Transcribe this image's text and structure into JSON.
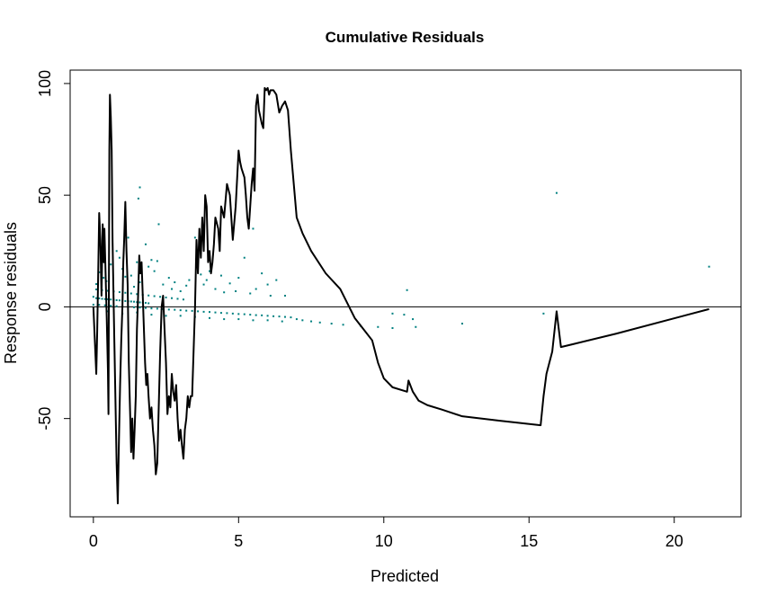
{
  "chart_data": {
    "type": "scatter",
    "title": "Cumulative Residuals",
    "xlabel": "Predicted",
    "ylabel": "Response   residuals",
    "xlim": [
      -0.8,
      22.3
    ],
    "ylim": [
      -94,
      106
    ],
    "x_ticks": [
      0,
      5,
      10,
      15,
      20
    ],
    "y_ticks": [
      -50,
      0,
      50,
      100
    ],
    "reference_line": {
      "y": 0,
      "color": "#000000"
    },
    "colors": {
      "points": "#008080",
      "cumulative_line": "#000000"
    },
    "grid": false,
    "legend": "none",
    "series": [
      {
        "kind": "points",
        "points": [
          [
            0.0,
            4.5
          ],
          [
            0.1,
            3.9
          ],
          [
            0.2,
            3.8
          ],
          [
            0.3,
            3.6
          ],
          [
            0.4,
            3.5
          ],
          [
            0.5,
            3.4
          ],
          [
            0.6,
            3.3
          ],
          [
            0.7,
            3.1
          ],
          [
            0.8,
            3.0
          ],
          [
            0.9,
            2.9
          ],
          [
            1.0,
            2.8
          ],
          [
            1.1,
            2.6
          ],
          [
            1.2,
            2.5
          ],
          [
            1.3,
            2.4
          ],
          [
            1.4,
            2.3
          ],
          [
            1.5,
            2.1
          ],
          [
            1.6,
            2.0
          ],
          [
            1.7,
            1.9
          ],
          [
            1.8,
            1.8
          ],
          [
            1.9,
            1.6
          ],
          [
            0.0,
            1.0
          ],
          [
            0.2,
            0.9
          ],
          [
            0.4,
            0.7
          ],
          [
            0.6,
            0.5
          ],
          [
            0.8,
            0.3
          ],
          [
            1.0,
            0.2
          ],
          [
            1.2,
            0.0
          ],
          [
            1.4,
            -0.2
          ],
          [
            1.6,
            -0.3
          ],
          [
            1.8,
            -0.5
          ],
          [
            2.0,
            -0.7
          ],
          [
            2.2,
            -0.8
          ],
          [
            2.4,
            -1.0
          ],
          [
            2.6,
            -1.2
          ],
          [
            2.8,
            -1.3
          ],
          [
            3.0,
            -1.5
          ],
          [
            3.2,
            -1.7
          ],
          [
            3.4,
            -1.8
          ],
          [
            3.6,
            -2.0
          ],
          [
            3.8,
            -2.2
          ],
          [
            4.0,
            -2.3
          ],
          [
            4.2,
            -2.5
          ],
          [
            4.4,
            -2.7
          ],
          [
            4.6,
            -2.8
          ],
          [
            4.8,
            -3.0
          ],
          [
            5.0,
            -3.2
          ],
          [
            5.2,
            -3.3
          ],
          [
            5.4,
            -3.5
          ],
          [
            5.6,
            -3.7
          ],
          [
            5.8,
            -3.8
          ],
          [
            6.0,
            -4.0
          ],
          [
            6.2,
            -4.2
          ],
          [
            6.4,
            -4.3
          ],
          [
            6.6,
            -4.5
          ],
          [
            6.8,
            -4.7
          ],
          [
            7.0,
            -5.5
          ],
          [
            7.2,
            -6.0
          ],
          [
            7.5,
            -6.5
          ],
          [
            7.8,
            -7.0
          ],
          [
            8.2,
            -7.5
          ],
          [
            8.6,
            -8.0
          ],
          [
            9.2,
            -8.5
          ],
          [
            9.8,
            -9.0
          ],
          [
            10.3,
            -9.5
          ],
          [
            11.1,
            -9.0
          ],
          [
            0.1,
            7.8
          ],
          [
            0.3,
            7.5
          ],
          [
            0.5,
            7.2
          ],
          [
            0.7,
            6.9
          ],
          [
            0.9,
            6.6
          ],
          [
            1.1,
            6.3
          ],
          [
            1.3,
            6.0
          ],
          [
            1.5,
            5.7
          ],
          [
            1.7,
            5.4
          ],
          [
            1.9,
            5.1
          ],
          [
            2.1,
            4.8
          ],
          [
            2.3,
            4.5
          ],
          [
            2.5,
            4.2
          ],
          [
            2.7,
            3.9
          ],
          [
            2.9,
            3.6
          ],
          [
            3.1,
            3.3
          ],
          [
            0.1,
            10.2
          ],
          [
            0.2,
            15.5
          ],
          [
            0.3,
            20.0
          ],
          [
            0.35,
            13.0
          ],
          [
            0.45,
            11.5
          ],
          [
            0.6,
            19.0
          ],
          [
            0.8,
            25.0
          ],
          [
            0.9,
            22.0
          ],
          [
            1.0,
            17.0
          ],
          [
            1.1,
            13.5
          ],
          [
            1.2,
            31.0
          ],
          [
            1.3,
            14.0
          ],
          [
            1.4,
            9.0
          ],
          [
            1.5,
            20.0
          ],
          [
            1.6,
            11.0
          ],
          [
            1.55,
            48.5
          ],
          [
            1.6,
            53.5
          ],
          [
            1.8,
            28.0
          ],
          [
            1.9,
            18.0
          ],
          [
            2.0,
            21.0
          ],
          [
            2.1,
            16.0
          ],
          [
            2.2,
            20.5
          ],
          [
            2.25,
            37.0
          ],
          [
            2.4,
            10.0
          ],
          [
            2.6,
            13.0
          ],
          [
            2.7,
            8.0
          ],
          [
            2.8,
            11.0
          ],
          [
            3.0,
            7.0
          ],
          [
            3.2,
            9.5
          ],
          [
            3.3,
            12.0
          ],
          [
            3.5,
            31.0
          ],
          [
            3.6,
            24.0
          ],
          [
            3.7,
            14.5
          ],
          [
            3.8,
            10.0
          ],
          [
            3.9,
            12.0
          ],
          [
            4.0,
            16.0
          ],
          [
            4.2,
            8.0
          ],
          [
            4.4,
            14.0
          ],
          [
            4.5,
            6.5
          ],
          [
            4.7,
            10.5
          ],
          [
            4.9,
            7.0
          ],
          [
            5.0,
            13.0
          ],
          [
            5.2,
            22.0
          ],
          [
            5.4,
            6.0
          ],
          [
            5.5,
            35.0
          ],
          [
            5.6,
            8.0
          ],
          [
            5.8,
            15.0
          ],
          [
            6.0,
            10.0
          ],
          [
            6.1,
            5.0
          ],
          [
            6.3,
            12.0
          ],
          [
            6.6,
            5.0
          ],
          [
            0.5,
            -2.0
          ],
          [
            1.0,
            -3.0
          ],
          [
            1.5,
            -2.5
          ],
          [
            2.0,
            -3.5
          ],
          [
            2.5,
            -4.0
          ],
          [
            3.0,
            -4.0
          ],
          [
            3.5,
            -4.5
          ],
          [
            4.0,
            -5.0
          ],
          [
            4.5,
            -5.5
          ],
          [
            5.0,
            -5.5
          ],
          [
            5.5,
            -6.0
          ],
          [
            6.0,
            -6.0
          ],
          [
            6.5,
            -6.5
          ],
          [
            10.3,
            -3.0
          ],
          [
            10.7,
            -3.5
          ],
          [
            10.8,
            7.5
          ],
          [
            11.0,
            -5.5
          ],
          [
            12.7,
            -7.5
          ],
          [
            15.5,
            -3.0
          ],
          [
            15.95,
            51.0
          ],
          [
            21.2,
            18.0
          ]
        ]
      },
      {
        "kind": "line",
        "name": "cumulative residuals",
        "points": [
          [
            0.0,
            0
          ],
          [
            0.05,
            -15
          ],
          [
            0.1,
            -30
          ],
          [
            0.13,
            -12
          ],
          [
            0.16,
            10
          ],
          [
            0.2,
            42
          ],
          [
            0.24,
            30
          ],
          [
            0.28,
            5
          ],
          [
            0.32,
            37
          ],
          [
            0.36,
            20
          ],
          [
            0.38,
            35
          ],
          [
            0.42,
            15
          ],
          [
            0.46,
            -5
          ],
          [
            0.5,
            -28
          ],
          [
            0.52,
            -48
          ],
          [
            0.55,
            70
          ],
          [
            0.57,
            95
          ],
          [
            0.6,
            85
          ],
          [
            0.63,
            70
          ],
          [
            0.66,
            30
          ],
          [
            0.7,
            0
          ],
          [
            0.75,
            -35
          ],
          [
            0.8,
            -70
          ],
          [
            0.84,
            -88
          ],
          [
            0.88,
            -60
          ],
          [
            0.92,
            -35
          ],
          [
            0.96,
            -15
          ],
          [
            1.0,
            0
          ],
          [
            1.03,
            20
          ],
          [
            1.06,
            30
          ],
          [
            1.1,
            47
          ],
          [
            1.14,
            25
          ],
          [
            1.18,
            10
          ],
          [
            1.22,
            -25
          ],
          [
            1.26,
            -45
          ],
          [
            1.3,
            -65
          ],
          [
            1.34,
            -50
          ],
          [
            1.38,
            -68
          ],
          [
            1.42,
            -55
          ],
          [
            1.46,
            -40
          ],
          [
            1.5,
            -10
          ],
          [
            1.54,
            5
          ],
          [
            1.58,
            23
          ],
          [
            1.62,
            15
          ],
          [
            1.66,
            20
          ],
          [
            1.7,
            5
          ],
          [
            1.74,
            -10
          ],
          [
            1.78,
            -25
          ],
          [
            1.82,
            -35
          ],
          [
            1.86,
            -30
          ],
          [
            1.9,
            -40
          ],
          [
            1.95,
            -50
          ],
          [
            2.0,
            -45
          ],
          [
            2.05,
            -55
          ],
          [
            2.1,
            -62
          ],
          [
            2.15,
            -75
          ],
          [
            2.2,
            -70
          ],
          [
            2.25,
            -45
          ],
          [
            2.3,
            -20
          ],
          [
            2.35,
            0
          ],
          [
            2.4,
            5
          ],
          [
            2.45,
            -10
          ],
          [
            2.5,
            -25
          ],
          [
            2.55,
            -48
          ],
          [
            2.6,
            -40
          ],
          [
            2.65,
            -45
          ],
          [
            2.7,
            -30
          ],
          [
            2.75,
            -38
          ],
          [
            2.8,
            -42
          ],
          [
            2.85,
            -35
          ],
          [
            2.9,
            -50
          ],
          [
            2.95,
            -60
          ],
          [
            3.0,
            -55
          ],
          [
            3.05,
            -62
          ],
          [
            3.1,
            -68
          ],
          [
            3.15,
            -55
          ],
          [
            3.2,
            -50
          ],
          [
            3.25,
            -40
          ],
          [
            3.3,
            -45
          ],
          [
            3.35,
            -40
          ],
          [
            3.4,
            -40
          ],
          [
            3.45,
            -20
          ],
          [
            3.5,
            0
          ],
          [
            3.55,
            30
          ],
          [
            3.6,
            15
          ],
          [
            3.65,
            35
          ],
          [
            3.7,
            22
          ],
          [
            3.75,
            40
          ],
          [
            3.8,
            25
          ],
          [
            3.85,
            50
          ],
          [
            3.9,
            45
          ],
          [
            3.95,
            20
          ],
          [
            4.0,
            25
          ],
          [
            4.05,
            15
          ],
          [
            4.1,
            20
          ],
          [
            4.15,
            28
          ],
          [
            4.2,
            40
          ],
          [
            4.3,
            35
          ],
          [
            4.35,
            25
          ],
          [
            4.4,
            45
          ],
          [
            4.5,
            40
          ],
          [
            4.6,
            55
          ],
          [
            4.7,
            50
          ],
          [
            4.75,
            40
          ],
          [
            4.8,
            30
          ],
          [
            4.9,
            45
          ],
          [
            5.0,
            70
          ],
          [
            5.05,
            65
          ],
          [
            5.1,
            62
          ],
          [
            5.2,
            58
          ],
          [
            5.25,
            50
          ],
          [
            5.3,
            40
          ],
          [
            5.35,
            35
          ],
          [
            5.4,
            45
          ],
          [
            5.45,
            55
          ],
          [
            5.5,
            62
          ],
          [
            5.55,
            52
          ],
          [
            5.6,
            90
          ],
          [
            5.65,
            95
          ],
          [
            5.7,
            88
          ],
          [
            5.75,
            85
          ],
          [
            5.8,
            82
          ],
          [
            5.85,
            80
          ],
          [
            5.9,
            98
          ],
          [
            5.95,
            97
          ],
          [
            6.0,
            98
          ],
          [
            6.05,
            95
          ],
          [
            6.1,
            97
          ],
          [
            6.2,
            97
          ],
          [
            6.3,
            95
          ],
          [
            6.4,
            87
          ],
          [
            6.5,
            90
          ],
          [
            6.6,
            92
          ],
          [
            6.7,
            88
          ],
          [
            6.8,
            70
          ],
          [
            6.9,
            55
          ],
          [
            7.0,
            40
          ],
          [
            7.2,
            33
          ],
          [
            7.5,
            25
          ],
          [
            8.0,
            15
          ],
          [
            8.5,
            8
          ],
          [
            9.0,
            -5
          ],
          [
            9.3,
            -10
          ],
          [
            9.6,
            -15
          ],
          [
            9.8,
            -25
          ],
          [
            10.0,
            -32
          ],
          [
            10.3,
            -36
          ],
          [
            10.8,
            -38
          ],
          [
            10.85,
            -33
          ],
          [
            11.0,
            -38
          ],
          [
            11.2,
            -42
          ],
          [
            11.5,
            -44
          ],
          [
            12.0,
            -46
          ],
          [
            12.7,
            -49
          ],
          [
            14.0,
            -51
          ],
          [
            15.4,
            -53
          ],
          [
            15.5,
            -40
          ],
          [
            15.6,
            -30
          ],
          [
            15.8,
            -20
          ],
          [
            15.95,
            -2
          ],
          [
            16.1,
            -18
          ],
          [
            18.0,
            -12
          ],
          [
            21.2,
            -1
          ]
        ]
      }
    ]
  }
}
